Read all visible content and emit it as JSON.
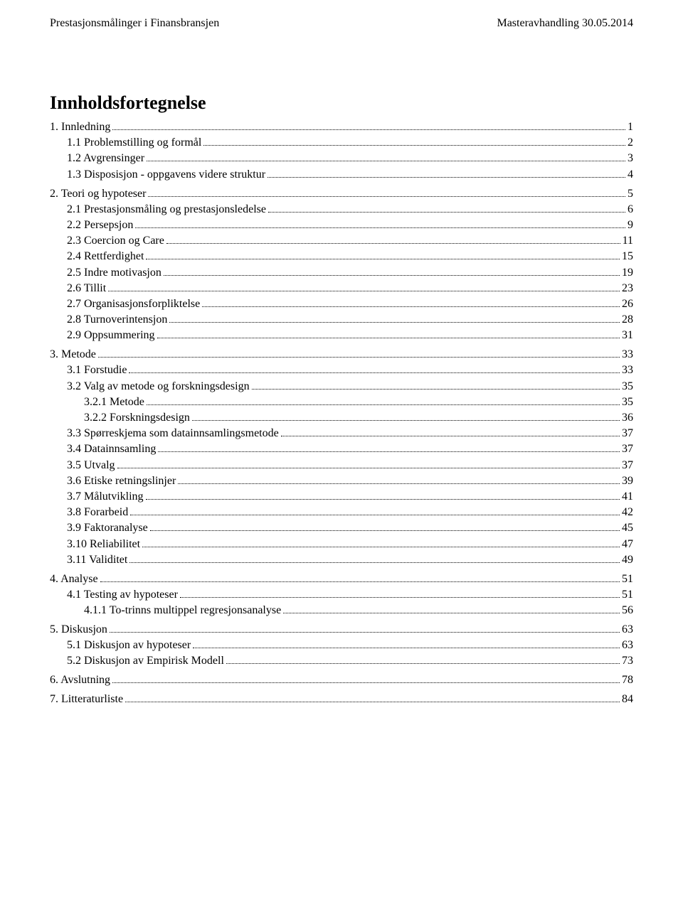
{
  "header": {
    "left": "Prestasjonsmålinger i Finansbransjen",
    "right": "Masteravhandling 30.05.2014"
  },
  "title": "Innholdsfortegnelse",
  "toc": [
    {
      "level": 1,
      "label": "1. Innledning",
      "page": "1"
    },
    {
      "level": 2,
      "label": "1.1 Problemstilling og formål",
      "page": "2"
    },
    {
      "level": 2,
      "label": "1.2 Avgrensinger",
      "page": "3"
    },
    {
      "level": 2,
      "label": "1.3 Disposisjon - oppgavens videre struktur",
      "page": "4"
    },
    {
      "level": 1,
      "label": "2. Teori og hypoteser",
      "page": "5"
    },
    {
      "level": 2,
      "label": "2.1 Prestasjonsmåling og prestasjonsledelse",
      "page": "6"
    },
    {
      "level": 2,
      "label": "2.2 Persepsjon",
      "page": "9"
    },
    {
      "level": 2,
      "label": "2.3 Coercion og Care",
      "page": "11"
    },
    {
      "level": 2,
      "label": "2.4 Rettferdighet",
      "page": "15"
    },
    {
      "level": 2,
      "label": "2.5 Indre motivasjon",
      "page": "19"
    },
    {
      "level": 2,
      "label": "2.6 Tillit",
      "page": "23"
    },
    {
      "level": 2,
      "label": "2.7 Organisasjonsforpliktelse",
      "page": "26"
    },
    {
      "level": 2,
      "label": "2.8 Turnoverintensjon",
      "page": "28"
    },
    {
      "level": 2,
      "label": "2.9 Oppsummering",
      "page": "31"
    },
    {
      "level": 1,
      "label": "3. Metode",
      "page": "33"
    },
    {
      "level": 2,
      "label": "3.1 Forstudie",
      "page": "33"
    },
    {
      "level": 2,
      "label": "3.2 Valg av metode og forskningsdesign",
      "page": "35"
    },
    {
      "level": 3,
      "label": "3.2.1 Metode",
      "page": "35"
    },
    {
      "level": 3,
      "label": "3.2.2 Forskningsdesign",
      "page": "36"
    },
    {
      "level": 2,
      "label": "3.3 Spørreskjema som datainnsamlingsmetode",
      "page": "37"
    },
    {
      "level": 2,
      "label": "3.4 Datainnsamling",
      "page": "37"
    },
    {
      "level": 2,
      "label": "3.5 Utvalg",
      "page": "37"
    },
    {
      "level": 2,
      "label": "3.6 Etiske retningslinjer",
      "page": "39"
    },
    {
      "level": 2,
      "label": "3.7 Målutvikling",
      "page": "41"
    },
    {
      "level": 2,
      "label": "3.8 Forarbeid",
      "page": "42"
    },
    {
      "level": 2,
      "label": "3.9 Faktoranalyse",
      "page": "45"
    },
    {
      "level": 2,
      "label": "3.10 Reliabilitet",
      "page": "47"
    },
    {
      "level": 2,
      "label": "3.11 Validitet",
      "page": "49"
    },
    {
      "level": 1,
      "label": "4. Analyse",
      "page": "51"
    },
    {
      "level": 2,
      "label": "4.1 Testing av hypoteser",
      "page": "51"
    },
    {
      "level": 3,
      "label": "4.1.1 To-trinns multippel regresjonsanalyse",
      "page": "56"
    },
    {
      "level": 1,
      "label": "5. Diskusjon",
      "page": "63"
    },
    {
      "level": 2,
      "label": "5.1 Diskusjon av hypoteser",
      "page": "63"
    },
    {
      "level": 2,
      "label": "5.2 Diskusjon av Empirisk Modell",
      "page": "73"
    },
    {
      "level": 1,
      "label": "6. Avslutning",
      "page": "78"
    },
    {
      "level": 1,
      "label": "7. Litteraturliste",
      "page": "84"
    }
  ]
}
